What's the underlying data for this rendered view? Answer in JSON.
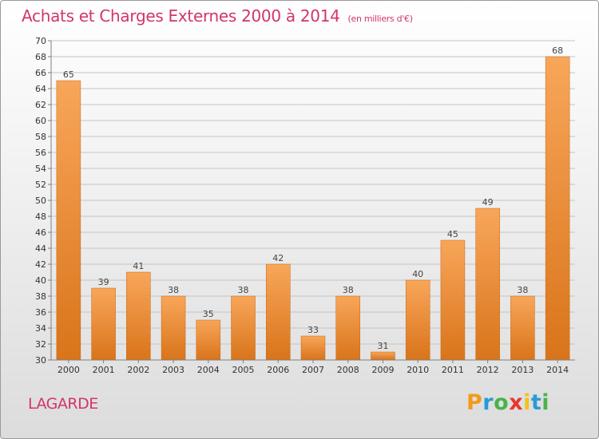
{
  "header": {
    "title": "Achats et Charges Externes 2000 à 2014",
    "unit": "(en milliers d'€)"
  },
  "footer": {
    "location": "LAGARDE",
    "brand_letters": [
      {
        "char": "P",
        "color": "#f39a1d"
      },
      {
        "char": "r",
        "color": "#2a9ad6"
      },
      {
        "char": "o",
        "color": "#4bb24b"
      },
      {
        "char": "x",
        "color": "#e8372f"
      },
      {
        "char": "i",
        "color": "#f3c21d"
      },
      {
        "char": "t",
        "color": "#2a9ad6"
      },
      {
        "char": "i",
        "color": "#4bb24b"
      }
    ]
  },
  "colors": {
    "title": "#d2356b",
    "bar_light": "#f8a65a",
    "bar_dark": "#d9741a",
    "axis": "#7f7f7f",
    "grid": "#c4c4c4"
  },
  "chart_data": {
    "type": "bar",
    "title": "Achats et Charges Externes 2000 à 2014",
    "subtitle": "(en milliers d'€)",
    "xlabel": "",
    "ylabel": "",
    "categories": [
      "2000",
      "2001",
      "2002",
      "2003",
      "2004",
      "2005",
      "2006",
      "2007",
      "2008",
      "2009",
      "2010",
      "2011",
      "2012",
      "2013",
      "2014"
    ],
    "values": [
      65,
      39,
      41,
      38,
      35,
      38,
      42,
      33,
      38,
      31,
      40,
      45,
      49,
      38,
      68
    ],
    "ylim": [
      30,
      70
    ],
    "ytick_step": 2,
    "grid": true,
    "data_labels": true
  }
}
